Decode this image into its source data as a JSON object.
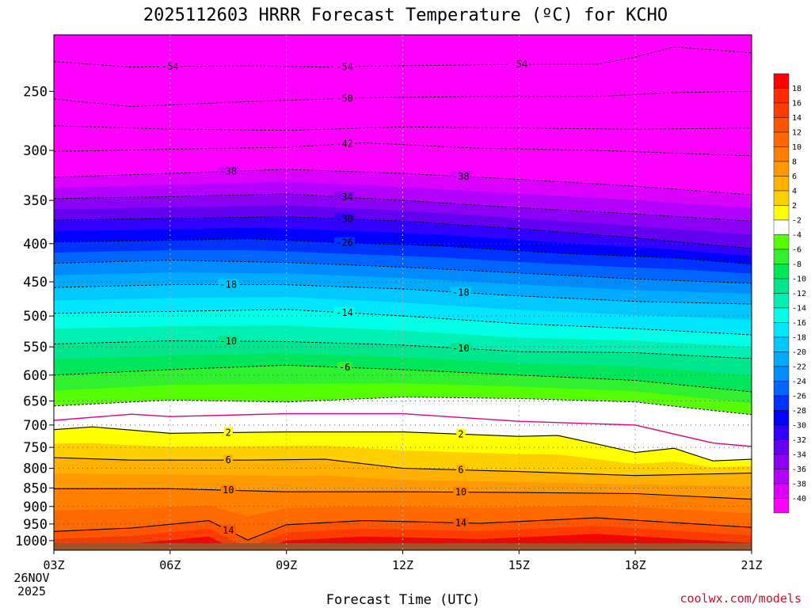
{
  "chart_data": {
    "type": "heatmap",
    "title": "2025112603 HRRR Forecast Temperature (ºC) for KCHO",
    "xlabel": "Forecast Time (UTC)",
    "ylabel": "",
    "x_ticks": [
      "03Z",
      "06Z",
      "09Z",
      "12Z",
      "15Z",
      "18Z",
      "21Z"
    ],
    "x_values": [
      3,
      6,
      9,
      12,
      15,
      18,
      21
    ],
    "x_sub_labels": [
      "26NOV",
      "2025"
    ],
    "xlim": [
      3,
      21
    ],
    "y_ticks": [
      250,
      300,
      350,
      400,
      450,
      500,
      550,
      600,
      650,
      700,
      750,
      800,
      850,
      900,
      950,
      1000
    ],
    "ylim": [
      1030,
      210
    ],
    "y_scale": "log-pressure",
    "colorbar": {
      "labels": [
        "18",
        "16",
        "14",
        "12",
        "10",
        "8",
        "6",
        "4",
        "2",
        "-2",
        "-4",
        "-6",
        "-8",
        "-10",
        "-12",
        "-14",
        "-16",
        "-18",
        "-20",
        "-22",
        "-24",
        "-26",
        "-28",
        "-30",
        "-32",
        "-34",
        "-36",
        "-38",
        "-40"
      ],
      "colors": [
        "#ff0000",
        "#ff2a00",
        "#ff3c00",
        "#ff5500",
        "#ff6a00",
        "#ff8000",
        "#ff9a00",
        "#ffb000",
        "#ffd000",
        "#ffff00",
        "#ffffff",
        "#55ff00",
        "#30f030",
        "#00e65a",
        "#00e68c",
        "#00f0b4",
        "#00ffe6",
        "#00e6ff",
        "#00c8ff",
        "#00aaff",
        "#008cff",
        "#0064ff",
        "#0032ff",
        "#0000ff",
        "#3200ff",
        "#6400f0",
        "#8c00f5",
        "#b400ff",
        "#dc00ff",
        "#ff00ff"
      ]
    },
    "series": [
      {
        "value": -54,
        "labels": [
          "-54",
          "-54",
          "-54"
        ],
        "points": [
          [
            3,
            228
          ],
          [
            5,
            232
          ],
          [
            8,
            231
          ],
          [
            10,
            232
          ],
          [
            12,
            231
          ],
          [
            15,
            230
          ],
          [
            17,
            230
          ],
          [
            18,
            225
          ],
          [
            19,
            218
          ],
          [
            21,
            222
          ]
        ]
      },
      {
        "value": -50,
        "labels": [
          "-50"
        ],
        "points": [
          [
            3,
            256
          ],
          [
            5,
            262
          ],
          [
            8,
            258
          ],
          [
            11,
            255
          ],
          [
            14,
            254
          ],
          [
            17,
            254
          ],
          [
            19,
            251
          ],
          [
            21,
            250
          ]
        ]
      },
      {
        "value": -46,
        "labels": [],
        "points": [
          [
            3,
            278
          ],
          [
            6,
            281
          ],
          [
            9,
            282
          ],
          [
            12,
            279
          ],
          [
            15,
            280
          ],
          [
            18,
            281
          ],
          [
            21,
            280
          ]
        ]
      },
      {
        "value": -42,
        "labels": [
          "-42"
        ],
        "points": [
          [
            3,
            301
          ],
          [
            6,
            299
          ],
          [
            9,
            297
          ],
          [
            11,
            293
          ],
          [
            14,
            298
          ],
          [
            17,
            300
          ],
          [
            21,
            305
          ]
        ]
      },
      {
        "value": -38,
        "labels": [
          "-38",
          "-38"
        ],
        "points": [
          [
            3,
            326
          ],
          [
            6,
            322
          ],
          [
            9,
            318
          ],
          [
            12,
            322
          ],
          [
            15,
            328
          ],
          [
            18,
            335
          ],
          [
            21,
            344
          ]
        ]
      },
      {
        "value": -34,
        "labels": [
          "-34"
        ],
        "points": [
          [
            3,
            348
          ],
          [
            6,
            346
          ],
          [
            9,
            343
          ],
          [
            12,
            350
          ],
          [
            15,
            358
          ],
          [
            18,
            365
          ],
          [
            21,
            373
          ]
        ]
      },
      {
        "value": -30,
        "labels": [
          "-30"
        ],
        "points": [
          [
            3,
            372
          ],
          [
            6,
            370
          ],
          [
            9,
            368
          ],
          [
            12,
            373
          ],
          [
            15,
            382
          ],
          [
            18,
            393
          ],
          [
            21,
            406
          ]
        ]
      },
      {
        "value": -26,
        "labels": [
          "-26"
        ],
        "points": [
          [
            3,
            398
          ],
          [
            6,
            396
          ],
          [
            8,
            394
          ],
          [
            10,
            398
          ],
          [
            13,
            403
          ],
          [
            16,
            412
          ],
          [
            19,
            418
          ],
          [
            21,
            426
          ]
        ]
      },
      {
        "value": -22,
        "labels": [],
        "points": [
          [
            3,
            425
          ],
          [
            6,
            421
          ],
          [
            9,
            424
          ],
          [
            12,
            430
          ],
          [
            15,
            438
          ],
          [
            18,
            446
          ],
          [
            21,
            452
          ]
        ]
      },
      {
        "value": -18,
        "labels": [
          "-18",
          "-18"
        ],
        "points": [
          [
            3,
            458
          ],
          [
            6,
            454
          ],
          [
            9,
            454
          ],
          [
            12,
            460
          ],
          [
            15,
            470
          ],
          [
            18,
            478
          ],
          [
            21,
            482
          ]
        ]
      },
      {
        "value": -14,
        "labels": [
          "-14"
        ],
        "points": [
          [
            3,
            496
          ],
          [
            6,
            493
          ],
          [
            9,
            490
          ],
          [
            12,
            500
          ],
          [
            15,
            512
          ],
          [
            18,
            520
          ],
          [
            21,
            530
          ]
        ]
      },
      {
        "value": -10,
        "labels": [
          "-10",
          "-10"
        ],
        "points": [
          [
            3,
            545
          ],
          [
            6,
            540
          ],
          [
            9,
            541
          ],
          [
            12,
            547
          ],
          [
            15,
            558
          ],
          [
            18,
            560
          ],
          [
            20,
            567
          ],
          [
            21,
            570
          ]
        ]
      },
      {
        "value": -6,
        "labels": [
          "-6"
        ],
        "points": [
          [
            3,
            600
          ],
          [
            6,
            590
          ],
          [
            9,
            582
          ],
          [
            12,
            590
          ],
          [
            15,
            600
          ],
          [
            18,
            610
          ],
          [
            21,
            632
          ]
        ]
      },
      {
        "value": -2,
        "labels": [],
        "points": [
          [
            3,
            660
          ],
          [
            6,
            648
          ],
          [
            9,
            652
          ],
          [
            12,
            642
          ],
          [
            15,
            645
          ],
          [
            18,
            652
          ],
          [
            21,
            678
          ]
        ]
      },
      {
        "value": 2,
        "labels": [
          "2",
          "2"
        ],
        "points": [
          [
            3,
            710
          ],
          [
            4,
            704
          ],
          [
            6,
            718
          ],
          [
            9,
            715
          ],
          [
            12,
            715
          ],
          [
            15,
            725
          ],
          [
            16,
            723
          ],
          [
            17,
            742
          ],
          [
            18,
            762
          ],
          [
            19,
            752
          ],
          [
            20,
            782
          ],
          [
            21,
            778
          ]
        ]
      },
      {
        "value": 6,
        "labels": [
          "6",
          "6"
        ],
        "points": [
          [
            3,
            774
          ],
          [
            5,
            780
          ],
          [
            8,
            780
          ],
          [
            10,
            778
          ],
          [
            12,
            800
          ],
          [
            15,
            808
          ],
          [
            18,
            818
          ],
          [
            21,
            812
          ]
        ]
      },
      {
        "value": 10,
        "labels": [
          "10",
          "10"
        ],
        "points": [
          [
            3,
            852
          ],
          [
            6,
            852
          ],
          [
            9,
            860
          ],
          [
            12,
            860
          ],
          [
            15,
            862
          ],
          [
            18,
            865
          ],
          [
            21,
            880
          ]
        ]
      },
      {
        "value": 14,
        "labels": [
          "14",
          "14"
        ],
        "points": [
          [
            3,
            972
          ],
          [
            5,
            962
          ],
          [
            7,
            940
          ],
          [
            8,
            998
          ],
          [
            9,
            952
          ],
          [
            11,
            940
          ],
          [
            14,
            948
          ],
          [
            17,
            932
          ],
          [
            21,
            960
          ]
        ]
      }
    ],
    "freezing_line_points": [
      [
        3,
        690
      ],
      [
        5,
        677
      ],
      [
        6,
        682
      ],
      [
        9,
        676
      ],
      [
        12,
        676
      ],
      [
        15,
        692
      ],
      [
        18,
        700
      ],
      [
        20,
        740
      ],
      [
        21,
        748
      ]
    ],
    "ground_level": 1000,
    "grid": true,
    "legend": "right"
  },
  "watermark": "coolwx.com/models"
}
